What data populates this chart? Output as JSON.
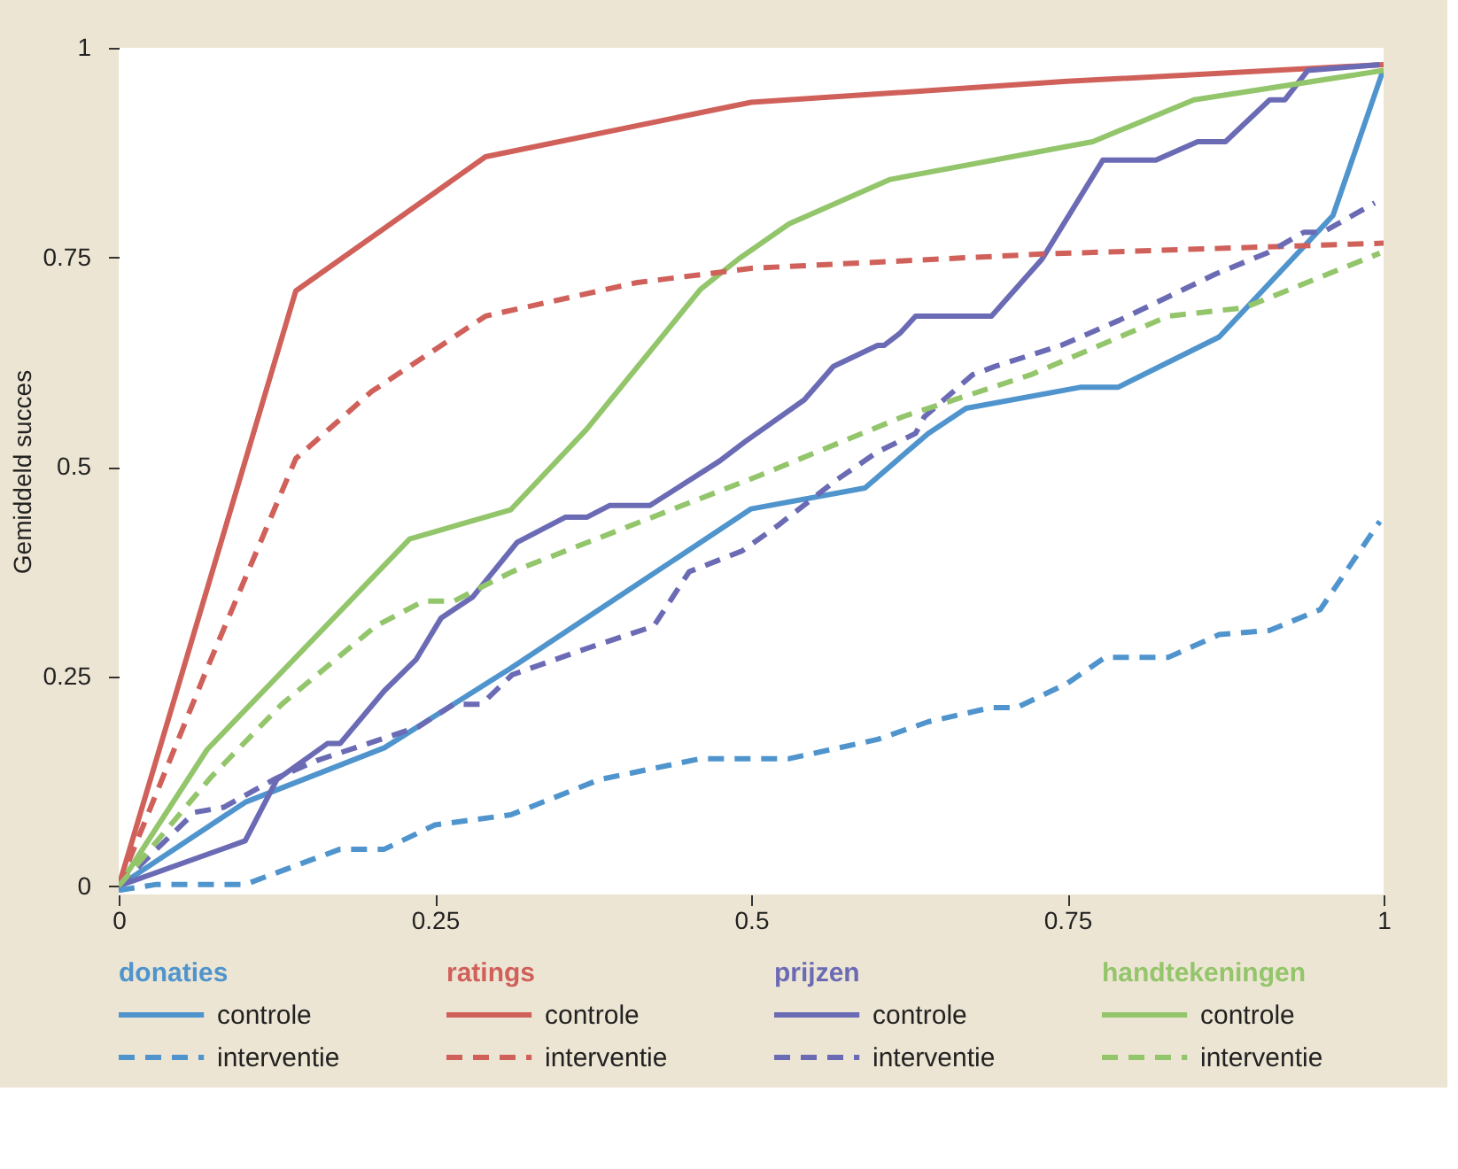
{
  "chart_data": {
    "type": "line",
    "ylabel": "Gemiddeld succes",
    "xlim": [
      0,
      1
    ],
    "ylim": [
      -0.01,
      1
    ],
    "xticks": [
      0,
      0.25,
      0.5,
      0.75,
      1
    ],
    "yticks": [
      0,
      0.25,
      0.5,
      0.75,
      1
    ],
    "grid": false,
    "legend": "bottom",
    "marker": "none",
    "annotations": [
      "donaties",
      "ratings",
      "prijzen",
      "handtekeningen"
    ],
    "series": [
      {
        "name": "controle",
        "color": "#4f94cd",
        "line_style": "solid",
        "x": [
          0,
          0.1,
          0.21,
          0.31,
          0.41,
          0.5,
          0.59,
          0.64,
          0.67,
          0.76,
          0.79,
          0.87,
          0.96,
          1
        ],
        "values": [
          0,
          0.1,
          0.165,
          0.26,
          0.36,
          0.45,
          0.475,
          0.54,
          0.57,
          0.595,
          0.595,
          0.655,
          0.8,
          0.975
        ]
      },
      {
        "name": "interventie",
        "color": "#4f94cd",
        "line_style": "dashed",
        "x": [
          0,
          0.03,
          0.1,
          0.175,
          0.21,
          0.25,
          0.31,
          0.38,
          0.46,
          0.53,
          0.6,
          0.64,
          0.69,
          0.71,
          0.75,
          0.78,
          0.83,
          0.87,
          0.91,
          0.95,
          0.997
        ],
        "values": [
          -0.005,
          0.002,
          0.002,
          0.044,
          0.044,
          0.073,
          0.085,
          0.127,
          0.152,
          0.152,
          0.175,
          0.196,
          0.213,
          0.213,
          0.242,
          0.273,
          0.273,
          0.3,
          0.305,
          0.33,
          0.435
        ]
      },
      {
        "name": "controle",
        "color": "#d0605a",
        "line_style": "solid",
        "x": [
          0,
          0.14,
          0.29,
          0.5,
          0.75,
          1
        ],
        "values": [
          0,
          0.71,
          0.87,
          0.935,
          0.96,
          0.98
        ]
      },
      {
        "name": "interventie",
        "color": "#d0605a",
        "line_style": "dashed",
        "x": [
          0,
          0.07,
          0.14,
          0.2,
          0.29,
          0.41,
          0.5,
          0.73,
          1
        ],
        "values": [
          0,
          0.26,
          0.51,
          0.59,
          0.68,
          0.72,
          0.737,
          0.754,
          0.767
        ]
      },
      {
        "name": "controle",
        "color": "#6b6bb5",
        "line_style": "solid",
        "x": [
          0,
          0.1,
          0.125,
          0.165,
          0.175,
          0.21,
          0.235,
          0.255,
          0.28,
          0.315,
          0.353,
          0.37,
          0.388,
          0.42,
          0.475,
          0.495,
          0.542,
          0.565,
          0.6,
          0.605,
          0.618,
          0.63,
          0.69,
          0.73,
          0.778,
          0.82,
          0.853,
          0.875,
          0.91,
          0.922,
          0.94,
          0.997
        ],
        "values": [
          0,
          0.054,
          0.127,
          0.17,
          0.17,
          0.233,
          0.27,
          0.32,
          0.345,
          0.41,
          0.44,
          0.44,
          0.454,
          0.454,
          0.507,
          0.53,
          0.58,
          0.62,
          0.645,
          0.645,
          0.66,
          0.68,
          0.68,
          0.748,
          0.866,
          0.866,
          0.888,
          0.888,
          0.938,
          0.938,
          0.973,
          0.98
        ]
      },
      {
        "name": "interventie",
        "color": "#6b6bb5",
        "line_style": "dashed",
        "x": [
          0,
          0.06,
          0.083,
          0.125,
          0.157,
          0.237,
          0.265,
          0.287,
          0.311,
          0.371,
          0.423,
          0.451,
          0.493,
          0.521,
          0.567,
          0.6,
          0.63,
          0.637,
          0.675,
          0.693,
          0.745,
          0.791,
          0.867,
          0.909,
          0.937,
          0.952,
          0.993
        ],
        "values": [
          0,
          0.088,
          0.094,
          0.129,
          0.15,
          0.19,
          0.217,
          0.217,
          0.252,
          0.284,
          0.31,
          0.375,
          0.4,
          0.43,
          0.484,
          0.518,
          0.54,
          0.56,
          0.61,
          0.62,
          0.645,
          0.675,
          0.73,
          0.756,
          0.78,
          0.78,
          0.815
        ]
      },
      {
        "name": "controle",
        "color": "#93c56b",
        "line_style": "solid",
        "x": [
          0,
          0.07,
          0.23,
          0.31,
          0.37,
          0.46,
          0.49,
          0.53,
          0.61,
          0.77,
          0.85,
          1
        ],
        "values": [
          0,
          0.163,
          0.414,
          0.449,
          0.545,
          0.712,
          0.748,
          0.79,
          0.843,
          0.888,
          0.938,
          0.973
        ]
      },
      {
        "name": "interventie",
        "color": "#93c56b",
        "line_style": "dashed",
        "x": [
          0,
          0.017,
          0.073,
          0.129,
          0.203,
          0.241,
          0.265,
          0.311,
          0.507,
          0.62,
          0.721,
          0.83,
          0.89,
          0.997
        ],
        "values": [
          0,
          0.03,
          0.13,
          0.217,
          0.31,
          0.34,
          0.34,
          0.375,
          0.49,
          0.56,
          0.61,
          0.68,
          0.69,
          0.755
        ]
      }
    ]
  }
}
